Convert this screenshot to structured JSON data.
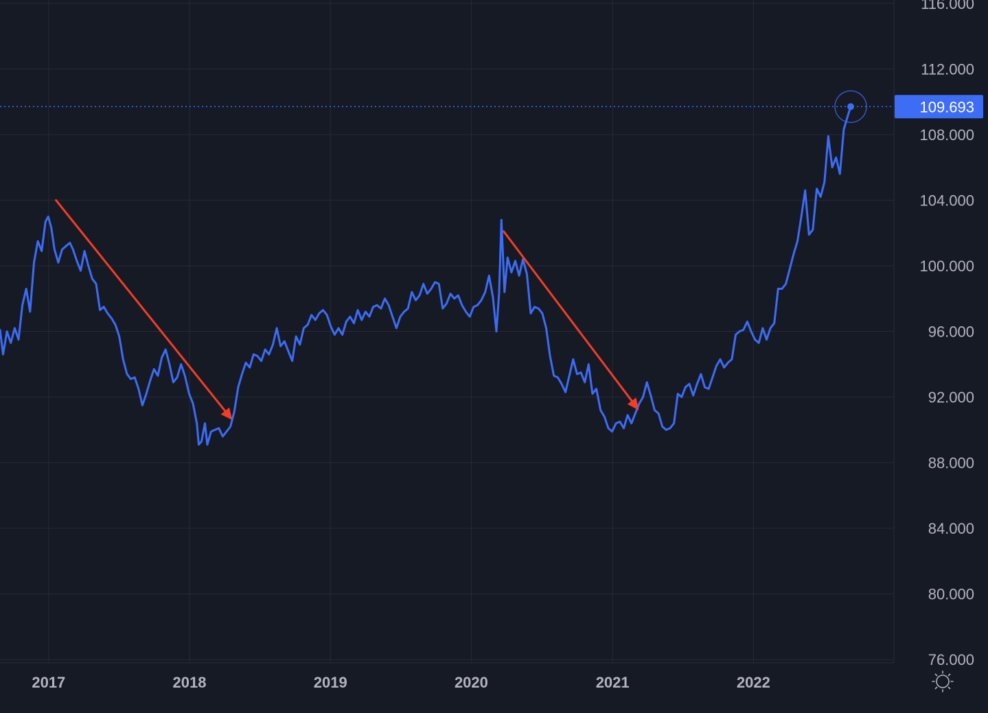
{
  "chart_data": {
    "type": "line",
    "title": "",
    "xlabel": "",
    "ylabel": "",
    "x_ticks": [
      "2017",
      "2018",
      "2019",
      "2020",
      "2021",
      "2022"
    ],
    "y_ticks": [
      "116.000",
      "112.000",
      "108.000",
      "104.000",
      "100.000",
      "96.000",
      "92.000",
      "88.000",
      "84.000",
      "80.000",
      "76.000"
    ],
    "ylim": [
      75.8,
      116.2
    ],
    "xlim": [
      "2016-08-28",
      "2022-12-31"
    ],
    "grid": true,
    "last_value_label": "109.693",
    "series": [
      {
        "color": "#3d6cf5",
        "points": [
          [
            "2016-08-28",
            96.1
          ],
          [
            "2016-09-05",
            94.6
          ],
          [
            "2016-09-15",
            96.0
          ],
          [
            "2016-09-25",
            95.3
          ],
          [
            "2016-10-05",
            96.2
          ],
          [
            "2016-10-15",
            95.5
          ],
          [
            "2016-10-25",
            97.6
          ],
          [
            "2016-11-04",
            98.6
          ],
          [
            "2016-11-14",
            97.2
          ],
          [
            "2016-11-24",
            100.2
          ],
          [
            "2016-12-04",
            101.5
          ],
          [
            "2016-12-14",
            100.9
          ],
          [
            "2016-12-24",
            102.7
          ],
          [
            "2016-12-31",
            103.0
          ],
          [
            "2017-01-08",
            102.3
          ],
          [
            "2017-01-16",
            101.0
          ],
          [
            "2017-01-26",
            100.2
          ],
          [
            "2017-02-05",
            101.0
          ],
          [
            "2017-02-15",
            101.2
          ],
          [
            "2017-02-25",
            101.4
          ],
          [
            "2017-03-05",
            101.0
          ],
          [
            "2017-03-15",
            100.3
          ],
          [
            "2017-03-25",
            99.7
          ],
          [
            "2017-04-04",
            100.9
          ],
          [
            "2017-04-14",
            100.0
          ],
          [
            "2017-04-24",
            99.2
          ],
          [
            "2017-05-04",
            98.9
          ],
          [
            "2017-05-14",
            97.3
          ],
          [
            "2017-05-24",
            97.5
          ],
          [
            "2017-06-03",
            97.1
          ],
          [
            "2017-06-13",
            96.8
          ],
          [
            "2017-06-23",
            96.4
          ],
          [
            "2017-07-03",
            95.7
          ],
          [
            "2017-07-13",
            94.3
          ],
          [
            "2017-07-23",
            93.4
          ],
          [
            "2017-08-02",
            93.1
          ],
          [
            "2017-08-12",
            93.2
          ],
          [
            "2017-08-22",
            92.5
          ],
          [
            "2017-09-01",
            91.5
          ],
          [
            "2017-09-11",
            92.2
          ],
          [
            "2017-09-21",
            93.0
          ],
          [
            "2017-10-01",
            93.7
          ],
          [
            "2017-10-11",
            93.3
          ],
          [
            "2017-10-21",
            94.4
          ],
          [
            "2017-10-31",
            94.9
          ],
          [
            "2017-11-10",
            94.0
          ],
          [
            "2017-11-20",
            92.9
          ],
          [
            "2017-11-30",
            93.2
          ],
          [
            "2017-12-10",
            94.0
          ],
          [
            "2017-12-20",
            93.3
          ],
          [
            "2017-12-31",
            92.2
          ],
          [
            "2018-01-10",
            91.6
          ],
          [
            "2018-01-20",
            90.4
          ],
          [
            "2018-01-25",
            89.1
          ],
          [
            "2018-02-01",
            89.3
          ],
          [
            "2018-02-10",
            90.4
          ],
          [
            "2018-02-16",
            89.1
          ],
          [
            "2018-02-26",
            89.9
          ],
          [
            "2018-03-08",
            90.0
          ],
          [
            "2018-03-18",
            90.1
          ],
          [
            "2018-03-28",
            89.6
          ],
          [
            "2018-04-07",
            89.9
          ],
          [
            "2018-04-17",
            90.2
          ],
          [
            "2018-04-27",
            91.1
          ],
          [
            "2018-05-07",
            92.6
          ],
          [
            "2018-05-17",
            93.4
          ],
          [
            "2018-05-27",
            94.1
          ],
          [
            "2018-06-06",
            93.8
          ],
          [
            "2018-06-16",
            94.6
          ],
          [
            "2018-06-26",
            94.5
          ],
          [
            "2018-07-06",
            94.2
          ],
          [
            "2018-07-16",
            94.9
          ],
          [
            "2018-07-26",
            94.6
          ],
          [
            "2018-08-05",
            95.2
          ],
          [
            "2018-08-15",
            96.2
          ],
          [
            "2018-08-25",
            95.1
          ],
          [
            "2018-09-04",
            95.4
          ],
          [
            "2018-09-14",
            94.8
          ],
          [
            "2018-09-24",
            94.2
          ],
          [
            "2018-10-04",
            95.7
          ],
          [
            "2018-10-14",
            95.2
          ],
          [
            "2018-10-24",
            96.2
          ],
          [
            "2018-11-03",
            96.4
          ],
          [
            "2018-11-13",
            97.0
          ],
          [
            "2018-11-23",
            96.7
          ],
          [
            "2018-12-03",
            97.1
          ],
          [
            "2018-12-13",
            97.3
          ],
          [
            "2018-12-23",
            97.0
          ],
          [
            "2019-01-02",
            96.3
          ],
          [
            "2019-01-12",
            95.8
          ],
          [
            "2019-01-22",
            96.2
          ],
          [
            "2019-02-01",
            95.8
          ],
          [
            "2019-02-11",
            96.6
          ],
          [
            "2019-02-21",
            96.9
          ],
          [
            "2019-03-03",
            96.5
          ],
          [
            "2019-03-13",
            97.3
          ],
          [
            "2019-03-23",
            96.7
          ],
          [
            "2019-04-02",
            97.2
          ],
          [
            "2019-04-12",
            96.9
          ],
          [
            "2019-04-22",
            97.5
          ],
          [
            "2019-05-02",
            97.6
          ],
          [
            "2019-05-12",
            97.4
          ],
          [
            "2019-05-22",
            98.0
          ],
          [
            "2019-06-01",
            97.6
          ],
          [
            "2019-06-11",
            96.9
          ],
          [
            "2019-06-21",
            96.2
          ],
          [
            "2019-07-01",
            96.9
          ],
          [
            "2019-07-11",
            97.2
          ],
          [
            "2019-07-21",
            97.4
          ],
          [
            "2019-07-31",
            98.4
          ],
          [
            "2019-08-10",
            97.9
          ],
          [
            "2019-08-20",
            98.2
          ],
          [
            "2019-08-30",
            98.9
          ],
          [
            "2019-09-09",
            98.3
          ],
          [
            "2019-09-19",
            98.6
          ],
          [
            "2019-09-29",
            99.0
          ],
          [
            "2019-10-09",
            98.9
          ],
          [
            "2019-10-19",
            97.4
          ],
          [
            "2019-10-29",
            97.7
          ],
          [
            "2019-11-08",
            98.3
          ],
          [
            "2019-11-18",
            98.0
          ],
          [
            "2019-11-28",
            98.2
          ],
          [
            "2019-12-08",
            97.6
          ],
          [
            "2019-12-18",
            97.2
          ],
          [
            "2019-12-28",
            96.9
          ],
          [
            "2020-01-07",
            97.5
          ],
          [
            "2020-01-17",
            97.6
          ],
          [
            "2020-01-27",
            97.9
          ],
          [
            "2020-02-06",
            98.4
          ],
          [
            "2020-02-16",
            99.4
          ],
          [
            "2020-02-26",
            98.1
          ],
          [
            "2020-03-06",
            96.0
          ],
          [
            "2020-03-13",
            98.3
          ],
          [
            "2020-03-19",
            102.8
          ],
          [
            "2020-03-27",
            98.4
          ],
          [
            "2020-04-04",
            100.5
          ],
          [
            "2020-04-14",
            99.6
          ],
          [
            "2020-04-24",
            100.3
          ],
          [
            "2020-05-04",
            99.4
          ],
          [
            "2020-05-14",
            100.4
          ],
          [
            "2020-05-24",
            99.5
          ],
          [
            "2020-06-03",
            97.1
          ],
          [
            "2020-06-13",
            97.5
          ],
          [
            "2020-06-23",
            97.4
          ],
          [
            "2020-07-03",
            97.1
          ],
          [
            "2020-07-13",
            96.2
          ],
          [
            "2020-07-23",
            94.5
          ],
          [
            "2020-08-02",
            93.3
          ],
          [
            "2020-08-12",
            93.2
          ],
          [
            "2020-08-22",
            92.8
          ],
          [
            "2020-09-01",
            92.3
          ],
          [
            "2020-09-11",
            93.3
          ],
          [
            "2020-09-21",
            94.3
          ],
          [
            "2020-10-01",
            93.4
          ],
          [
            "2020-10-11",
            93.5
          ],
          [
            "2020-10-21",
            92.9
          ],
          [
            "2020-10-31",
            94.0
          ],
          [
            "2020-11-10",
            92.2
          ],
          [
            "2020-11-20",
            92.5
          ],
          [
            "2020-12-01",
            91.2
          ],
          [
            "2020-12-11",
            90.8
          ],
          [
            "2020-12-21",
            90.1
          ],
          [
            "2020-12-31",
            89.9
          ],
          [
            "2021-01-10",
            90.4
          ],
          [
            "2021-01-20",
            90.5
          ],
          [
            "2021-01-30",
            90.1
          ],
          [
            "2021-02-09",
            90.9
          ],
          [
            "2021-02-19",
            90.4
          ],
          [
            "2021-03-01",
            91.0
          ],
          [
            "2021-03-11",
            91.6
          ],
          [
            "2021-03-21",
            92.0
          ],
          [
            "2021-03-31",
            92.9
          ],
          [
            "2021-04-10",
            92.1
          ],
          [
            "2021-04-20",
            91.2
          ],
          [
            "2021-04-30",
            91.0
          ],
          [
            "2021-05-10",
            90.2
          ],
          [
            "2021-05-20",
            90.0
          ],
          [
            "2021-05-30",
            90.1
          ],
          [
            "2021-06-09",
            90.4
          ],
          [
            "2021-06-19",
            92.2
          ],
          [
            "2021-06-29",
            92.0
          ],
          [
            "2021-07-09",
            92.6
          ],
          [
            "2021-07-19",
            92.8
          ],
          [
            "2021-07-29",
            92.1
          ],
          [
            "2021-08-08",
            92.8
          ],
          [
            "2021-08-18",
            93.4
          ],
          [
            "2021-08-28",
            92.6
          ],
          [
            "2021-09-07",
            92.5
          ],
          [
            "2021-09-17",
            93.2
          ],
          [
            "2021-09-27",
            93.9
          ],
          [
            "2021-10-07",
            94.3
          ],
          [
            "2021-10-17",
            93.8
          ],
          [
            "2021-10-27",
            94.1
          ],
          [
            "2021-11-06",
            94.3
          ],
          [
            "2021-11-16",
            95.8
          ],
          [
            "2021-11-26",
            96.0
          ],
          [
            "2021-12-06",
            96.1
          ],
          [
            "2021-12-16",
            96.6
          ],
          [
            "2021-12-26",
            96.0
          ],
          [
            "2022-01-05",
            95.5
          ],
          [
            "2022-01-15",
            95.3
          ],
          [
            "2022-01-25",
            96.2
          ],
          [
            "2022-02-04",
            95.5
          ],
          [
            "2022-02-14",
            96.2
          ],
          [
            "2022-02-24",
            96.5
          ],
          [
            "2022-03-06",
            98.6
          ],
          [
            "2022-03-16",
            98.6
          ],
          [
            "2022-03-26",
            98.9
          ],
          [
            "2022-04-05",
            99.8
          ],
          [
            "2022-04-15",
            100.7
          ],
          [
            "2022-04-25",
            101.5
          ],
          [
            "2022-05-05",
            103.0
          ],
          [
            "2022-05-15",
            104.6
          ],
          [
            "2022-05-25",
            101.9
          ],
          [
            "2022-06-04",
            102.2
          ],
          [
            "2022-06-14",
            104.7
          ],
          [
            "2022-06-24",
            104.2
          ],
          [
            "2022-07-04",
            105.1
          ],
          [
            "2022-07-14",
            107.9
          ],
          [
            "2022-07-24",
            106.0
          ],
          [
            "2022-08-03",
            106.6
          ],
          [
            "2022-08-13",
            105.6
          ],
          [
            "2022-08-23",
            108.3
          ],
          [
            "2022-09-02",
            109.1
          ],
          [
            "2022-09-10",
            109.7
          ]
        ]
      }
    ],
    "annotations": [
      {
        "type": "arrow",
        "color": "#f23d27",
        "from": [
          "2017-01-20",
          104.0
        ],
        "to": [
          "2018-04-22",
          90.6
        ]
      },
      {
        "type": "arrow",
        "color": "#f23d27",
        "from": [
          "2020-03-25",
          102.1
        ],
        "to": [
          "2021-03-10",
          91.2
        ]
      }
    ]
  }
}
